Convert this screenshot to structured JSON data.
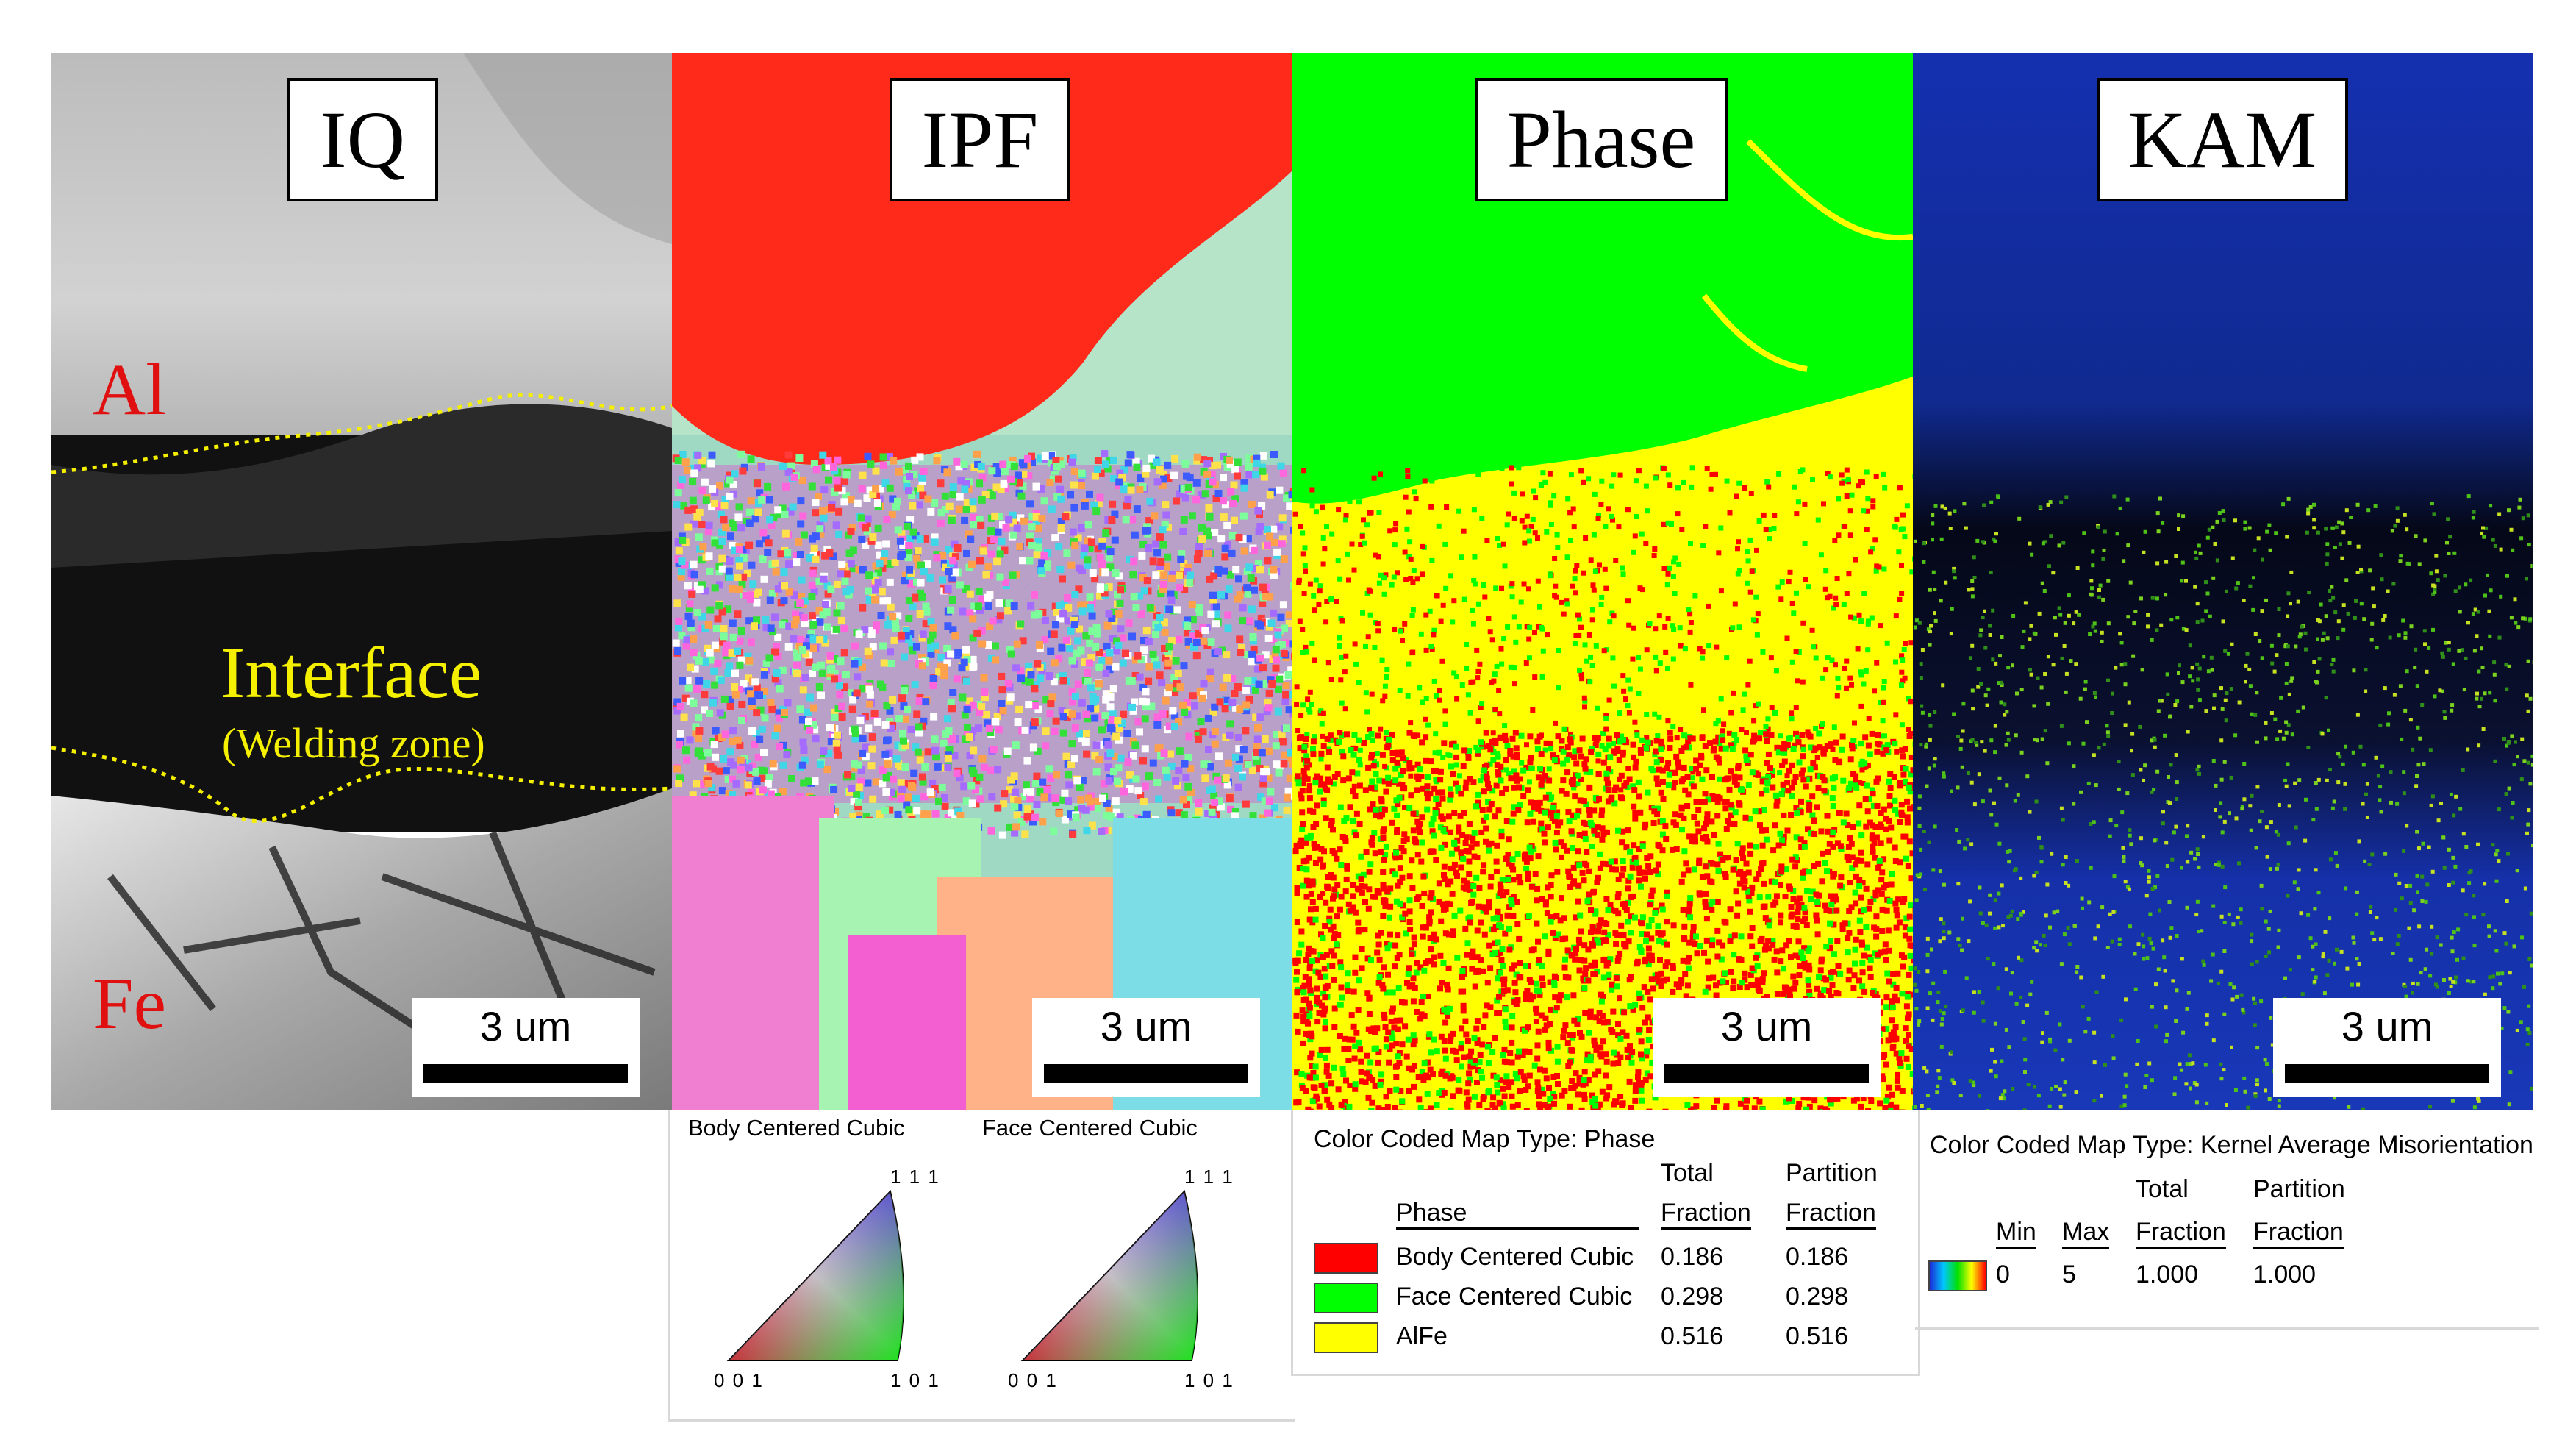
{
  "panels": {
    "iq": {
      "label": "IQ",
      "scale": "3 um"
    },
    "ipf": {
      "label": "IPF",
      "scale": "3 um"
    },
    "phase": {
      "label": "Phase",
      "scale": "3 um"
    },
    "kam": {
      "label": "KAM",
      "scale": "3 um"
    }
  },
  "iq_annotations": {
    "top_material": "Al",
    "bottom_material": "Fe",
    "interface": "Interface",
    "interface_sub": "(Welding zone)"
  },
  "ipf_legend": {
    "bcc_title": "Body Centered Cubic",
    "fcc_title": "Face Centered Cubic",
    "apex_111": "1 1 1",
    "corner_001": "0 0 1",
    "corner_101": "1 0 1"
  },
  "phase_legend": {
    "title": "Color Coded Map Type: Phase",
    "col_phase": "Phase",
    "col_total": [
      "Total",
      "Fraction"
    ],
    "col_partition": [
      "Partition",
      "Fraction"
    ],
    "rows": [
      {
        "name": "Body Centered Cubic",
        "total": "0.186",
        "partition": "0.186",
        "color": "#ff0000"
      },
      {
        "name": "Face Centered Cubic",
        "total": "0.298",
        "partition": "0.298",
        "color": "#00ff00"
      },
      {
        "name": "AlFe",
        "total": "0.516",
        "partition": "0.516",
        "color": "#ffff00"
      }
    ]
  },
  "kam_legend": {
    "title": "Color Coded Map Type: Kernel Average Misorientation",
    "col_min": "Min",
    "col_max": "Max",
    "col_total": [
      "Total",
      "Fraction"
    ],
    "col_partition": [
      "Partition",
      "Fraction"
    ],
    "min": "0",
    "max": "5",
    "total": "1.000",
    "partition": "1.000"
  },
  "colors": {
    "annotation_red": "#e01010",
    "annotation_yellow": "#f4f000",
    "phase_green": "#00ff00",
    "phase_yellow": "#ffff00",
    "phase_red": "#ff0000",
    "kam_blue": "#1530b0"
  }
}
